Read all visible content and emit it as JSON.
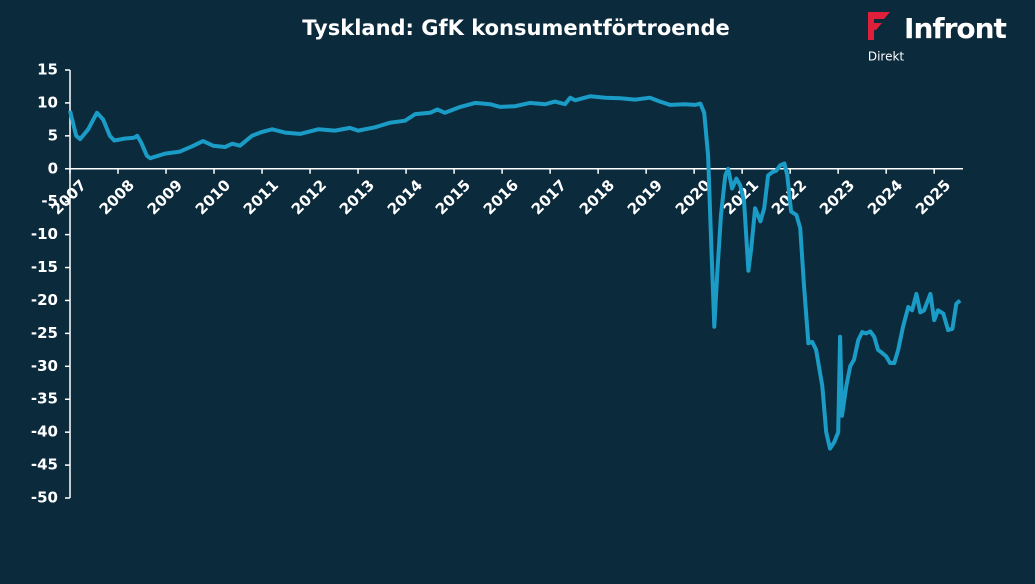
{
  "chart_data": {
    "type": "line",
    "title": "Tyskland: GfK konsumentförtroende",
    "x": [
      2007.0,
      2007.13,
      2007.21,
      2007.38,
      2007.56,
      2007.69,
      2007.83,
      2007.92,
      2008.15,
      2008.33,
      2008.4,
      2008.48,
      2008.6,
      2008.67,
      2008.98,
      2009.29,
      2009.54,
      2009.77,
      2009.98,
      2010.23,
      2010.38,
      2010.54,
      2010.79,
      2011.0,
      2011.21,
      2011.48,
      2011.79,
      2012.17,
      2012.52,
      2012.83,
      2013.0,
      2013.35,
      2013.67,
      2013.98,
      2014.19,
      2014.5,
      2014.65,
      2014.81,
      2015.13,
      2015.44,
      2015.75,
      2015.96,
      2016.27,
      2016.58,
      2016.9,
      2017.1,
      2017.31,
      2017.42,
      2017.52,
      2017.83,
      2018.15,
      2018.46,
      2018.77,
      2019.08,
      2019.29,
      2019.5,
      2019.81,
      2020.02,
      2020.13,
      2020.21,
      2020.29,
      2020.35,
      2020.42,
      2020.48,
      2020.56,
      2020.65,
      2020.71,
      2020.79,
      2020.88,
      2020.96,
      2021.04,
      2021.13,
      2021.19,
      2021.27,
      2021.38,
      2021.46,
      2021.54,
      2021.63,
      2021.71,
      2021.79,
      2021.88,
      2021.94,
      2022.02,
      2022.13,
      2022.21,
      2022.29,
      2022.38,
      2022.46,
      2022.54,
      2022.67,
      2022.75,
      2022.83,
      2022.92,
      2023.0,
      2023.04,
      2023.08,
      2023.17,
      2023.25,
      2023.33,
      2023.42,
      2023.5,
      2023.58,
      2023.67,
      2023.75,
      2023.83,
      2023.92,
      2024.0,
      2024.08,
      2024.17,
      2024.25,
      2024.35,
      2024.46,
      2024.54,
      2024.63,
      2024.71,
      2024.79,
      2024.92,
      2025.0,
      2025.08,
      2025.19,
      2025.29,
      2025.38,
      2025.46,
      2025.54
    ],
    "series": [
      {
        "color": "#1a9cc6",
        "values": [
          8.8,
          5,
          4.5,
          6,
          8.5,
          7.5,
          5,
          4.3,
          4.6,
          4.7,
          5,
          4,
          2,
          1.6,
          2.3,
          2.6,
          3.4,
          4.2,
          3.5,
          3.3,
          3.8,
          3.5,
          5,
          5.6,
          6,
          5.5,
          5.3,
          6,
          5.8,
          6.2,
          5.8,
          6.3,
          7,
          7.3,
          8.3,
          8.5,
          9,
          8.5,
          9.4,
          10,
          9.8,
          9.4,
          9.5,
          10,
          9.8,
          10.2,
          9.8,
          10.8,
          10.4,
          11,
          10.8,
          10.7,
          10.5,
          10.8,
          10.2,
          9.7,
          9.8,
          9.7,
          9.9,
          8.5,
          2,
          -10,
          -24,
          -16,
          -7,
          -1,
          0,
          -3,
          -1.5,
          -2.5,
          -5,
          -15.5,
          -12,
          -6,
          -8,
          -6,
          -1,
          -0.5,
          -0.3,
          0.5,
          0.8,
          -1,
          -6.5,
          -7,
          -9,
          -18,
          -26.5,
          -26.3,
          -27.5,
          -33,
          -40,
          -42.5,
          -41.5,
          -40,
          -25.5,
          -37.5,
          -33,
          -30,
          -29,
          -26,
          -24.8,
          -25,
          -24.7,
          -25.5,
          -27.5,
          -28,
          -28.5,
          -29.5,
          -29.5,
          -27.5,
          -24,
          -21,
          -21.5,
          -19,
          -21.8,
          -21.5,
          -19,
          -23,
          -21.5,
          -22,
          -24.5,
          -24.3,
          -20.5,
          -20
        ]
      }
    ],
    "xlim": [
      2007,
      2025.6
    ],
    "xticks": [
      2007,
      2008,
      2009,
      2010,
      2011,
      2012,
      2013,
      2014,
      2015,
      2016,
      2017,
      2018,
      2019,
      2020,
      2021,
      2022,
      2023,
      2024,
      2025
    ],
    "ylim": [
      -50,
      15
    ],
    "yticks": [
      -50,
      -45,
      -40,
      -35,
      -30,
      -25,
      -20,
      -15,
      -10,
      -5,
      0,
      5,
      10,
      15
    ]
  },
  "logo": {
    "name": "Infront",
    "sub": "Direkt"
  }
}
